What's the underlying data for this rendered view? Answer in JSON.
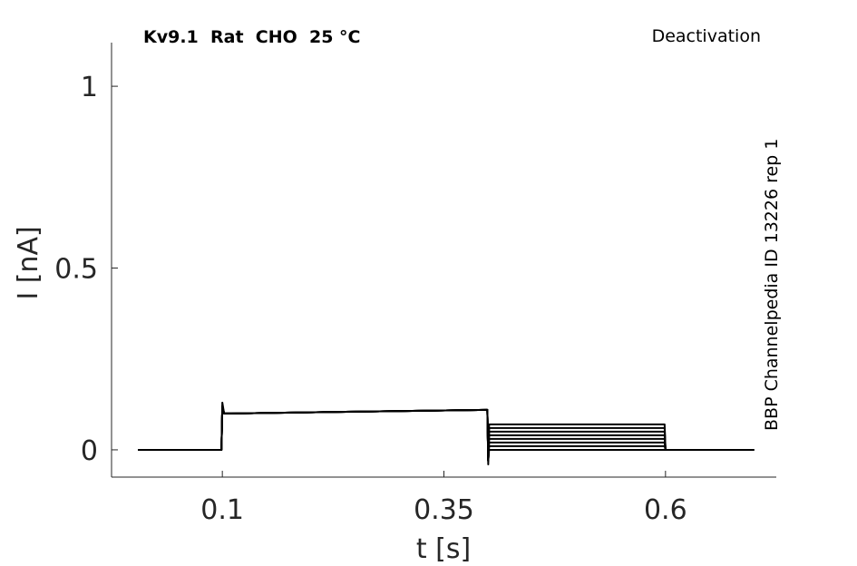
{
  "chart_data": {
    "type": "line",
    "title": "Kv9.1  Rat  CHO  25 °C",
    "annotation": "Deactivation",
    "side_note": "BBP Channelpedia ID 13226 rep 1",
    "xlabel": "t [s]",
    "ylabel": "I [nA]",
    "xlim": [
      -0.025,
      0.725
    ],
    "ylim": [
      -0.075,
      1.12
    ],
    "xticks": [
      0.1,
      0.35,
      0.6
    ],
    "yticks": [
      0,
      0.5,
      1
    ],
    "grid": false,
    "x": [
      0.005,
      0.099,
      0.1,
      0.102,
      0.11,
      0.25,
      0.399,
      0.4,
      0.401,
      0.5,
      0.599,
      0.6,
      0.7
    ],
    "series": [
      {
        "color": "#000000",
        "values": [
          0,
          0,
          0.13,
          0.1,
          0.1,
          0.105,
          0.11,
          -0.04,
          0.07,
          0.07,
          0.07,
          0,
          0
        ]
      },
      {
        "color": "#000000",
        "values": [
          0,
          0,
          0.12,
          0.1,
          0.1,
          0.105,
          0.11,
          -0.03,
          0.06,
          0.06,
          0.06,
          0,
          0
        ]
      },
      {
        "color": "#000000",
        "values": [
          0,
          0,
          0.12,
          0.1,
          0.1,
          0.105,
          0.11,
          -0.03,
          0.05,
          0.05,
          0.05,
          0,
          0
        ]
      },
      {
        "color": "#000000",
        "values": [
          0,
          0,
          0.12,
          0.1,
          0.1,
          0.105,
          0.11,
          -0.03,
          0.04,
          0.04,
          0.04,
          0,
          0
        ]
      },
      {
        "color": "#000000",
        "values": [
          0,
          0,
          0.12,
          0.1,
          0.1,
          0.105,
          0.11,
          -0.03,
          0.03,
          0.03,
          0.03,
          0,
          0
        ]
      },
      {
        "color": "#000000",
        "values": [
          0,
          0,
          0.12,
          0.1,
          0.1,
          0.105,
          0.11,
          -0.03,
          0.02,
          0.02,
          0.02,
          0,
          0
        ]
      },
      {
        "color": "#000000",
        "values": [
          0,
          0,
          0.12,
          0.1,
          0.1,
          0.105,
          0.11,
          -0.03,
          0.01,
          0.01,
          0.01,
          0,
          0
        ]
      },
      {
        "color": "#000000",
        "values": [
          0,
          0,
          0.12,
          0.1,
          0.1,
          0.105,
          0.11,
          -0.03,
          0,
          0,
          0,
          0,
          0
        ]
      }
    ]
  }
}
